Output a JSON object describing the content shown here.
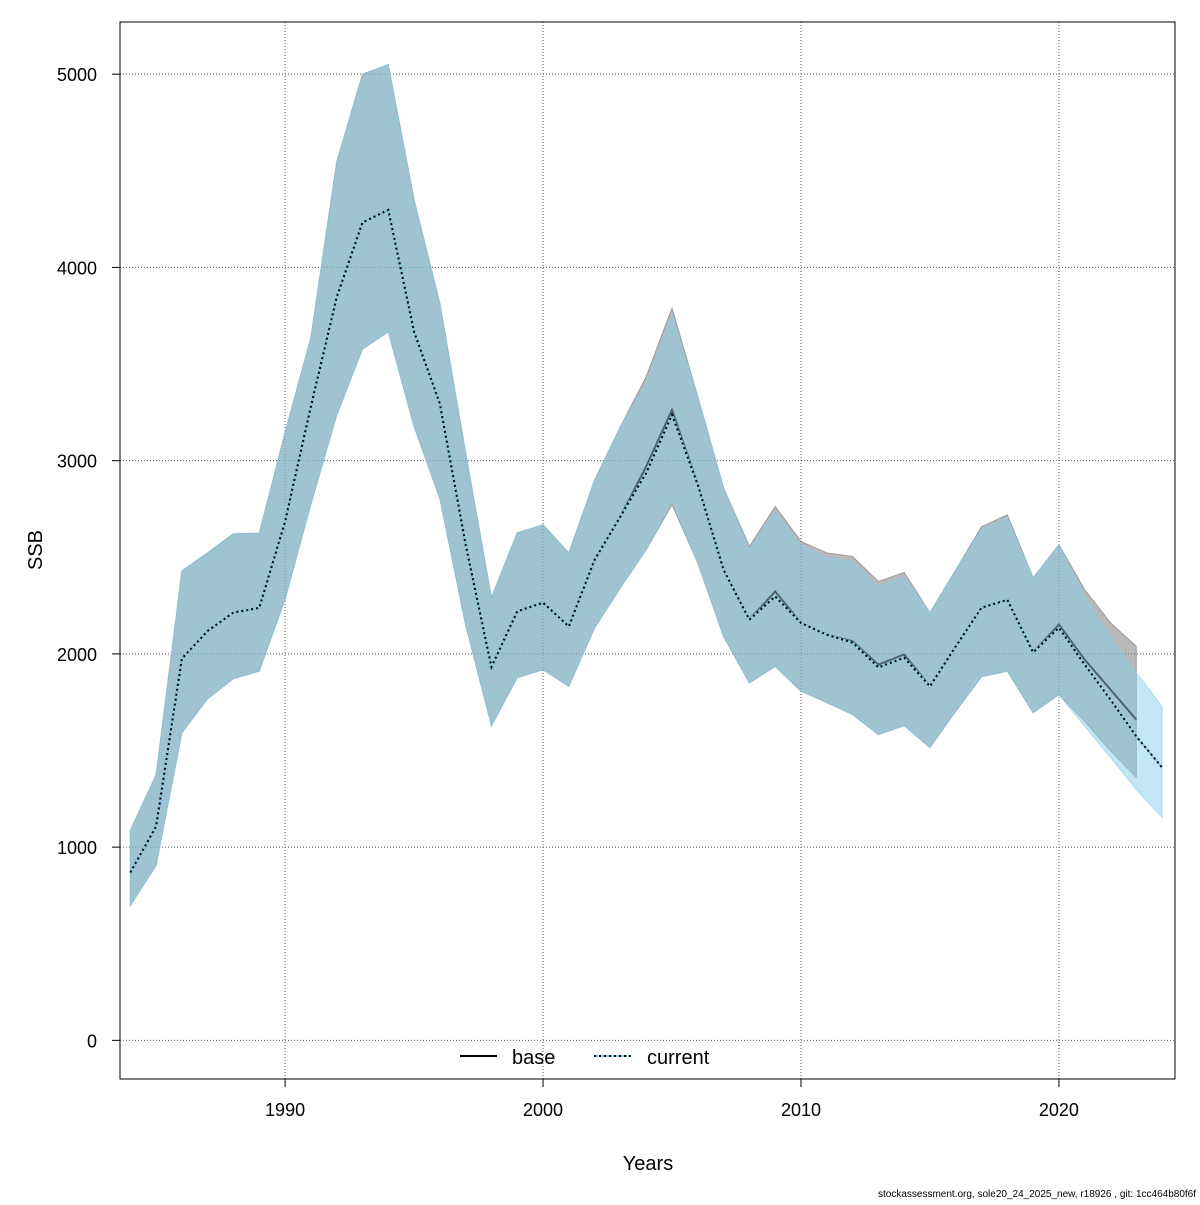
{
  "chart_data": {
    "type": "area",
    "xlabel": "Years",
    "ylabel": "SSB",
    "xlim": [
      1983.6,
      2024.5
    ],
    "ylim": [
      -200,
      5270
    ],
    "x_ticks": [
      1990,
      2000,
      2010,
      2020
    ],
    "y_ticks": [
      0,
      1000,
      2000,
      3000,
      4000,
      5000
    ],
    "grid": true,
    "legend_placement": "bottom",
    "series": [
      {
        "name": "base",
        "color": "#000000",
        "band_color": "#737373",
        "line_style": "solid",
        "x": [
          1984,
          1985,
          1986,
          1987,
          1988,
          1989,
          1990,
          1991,
          1992,
          1993,
          1994,
          1995,
          1996,
          1997,
          1998,
          1999,
          2000,
          2001,
          2002,
          2003,
          2004,
          2005,
          2006,
          2007,
          2008,
          2009,
          2010,
          2011,
          2012,
          2013,
          2014,
          2015,
          2016,
          2017,
          2018,
          2019,
          2020,
          2021,
          2022,
          2023
        ],
        "values": [
          869,
          1107,
          1976,
          2119,
          2214,
          2238,
          2685,
          3280,
          3845,
          4232,
          4298,
          3667,
          3295,
          2565,
          1932,
          2220,
          2265,
          2142,
          2487,
          2711,
          2970,
          3263,
          2875,
          2435,
          2177,
          2323,
          2160,
          2099,
          2065,
          1944,
          1997,
          1832,
          2039,
          2239,
          2280,
          2008,
          2152,
          1970,
          1815,
          1660
        ],
        "upper": [
          1086,
          1375,
          2429,
          2524,
          2622,
          2625,
          3146,
          3637,
          4545,
          5000,
          5050,
          4351,
          3815,
          3042,
          2292,
          2627,
          2668,
          2523,
          2900,
          3176,
          3435,
          3790,
          3331,
          2859,
          2556,
          2763,
          2582,
          2523,
          2504,
          2375,
          2421,
          2213,
          2435,
          2658,
          2720,
          2394,
          2565,
          2332,
          2161,
          2039
        ],
        "lower": [
          697,
          905,
          1592,
          1768,
          1872,
          1911,
          2283,
          2774,
          3235,
          3577,
          3667,
          3176,
          2804,
          2149,
          1628,
          1877,
          1918,
          1832,
          2135,
          2342,
          2539,
          2772,
          2470,
          2090,
          1850,
          1935,
          1806,
          1748,
          1686,
          1582,
          1629,
          1515,
          1703,
          1882,
          1910,
          1696,
          1789,
          1651,
          1498,
          1360
        ]
      },
      {
        "name": "current",
        "color": "#000000",
        "band_color": "#87CEEB",
        "line_style": "dotted",
        "x": [
          1984,
          1985,
          1986,
          1987,
          1988,
          1989,
          1990,
          1991,
          1992,
          1993,
          1994,
          1995,
          1996,
          1997,
          1998,
          1999,
          2000,
          2001,
          2002,
          2003,
          2004,
          2005,
          2006,
          2007,
          2008,
          2009,
          2010,
          2011,
          2012,
          2013,
          2014,
          2015,
          2016,
          2017,
          2018,
          2019,
          2020,
          2021,
          2022,
          2023,
          2024
        ],
        "values": [
          869,
          1107,
          1976,
          2119,
          2214,
          2238,
          2685,
          3280,
          3845,
          4232,
          4298,
          3667,
          3295,
          2565,
          1932,
          2220,
          2265,
          2142,
          2487,
          2711,
          2936,
          3237,
          2875,
          2435,
          2177,
          2297,
          2160,
          2099,
          2058,
          1930,
          1980,
          1832,
          2039,
          2239,
          2280,
          2008,
          2135,
          1944,
          1763,
          1573,
          1412
        ],
        "upper": [
          1086,
          1375,
          2429,
          2524,
          2622,
          2625,
          3146,
          3637,
          4545,
          5000,
          5050,
          4351,
          3815,
          3042,
          2292,
          2627,
          2668,
          2523,
          2900,
          3176,
          3400,
          3754,
          3331,
          2859,
          2540,
          2740,
          2565,
          2498,
          2478,
          2349,
          2397,
          2213,
          2435,
          2644,
          2703,
          2394,
          2565,
          2298,
          2092,
          1903,
          1728
        ],
        "lower": [
          697,
          905,
          1592,
          1768,
          1872,
          1911,
          2283,
          2774,
          3235,
          3577,
          3667,
          3176,
          2804,
          2149,
          1628,
          1877,
          1918,
          1832,
          2135,
          2342,
          2539,
          2789,
          2470,
          2090,
          1850,
          1935,
          1806,
          1748,
          1686,
          1582,
          1629,
          1515,
          1703,
          1882,
          1910,
          1696,
          1789,
          1625,
          1463,
          1298,
          1153
        ]
      }
    ]
  },
  "footer": "stockassessment.org, sole20_24_2025_new, r18926 , git: 1cc464b80f6f"
}
